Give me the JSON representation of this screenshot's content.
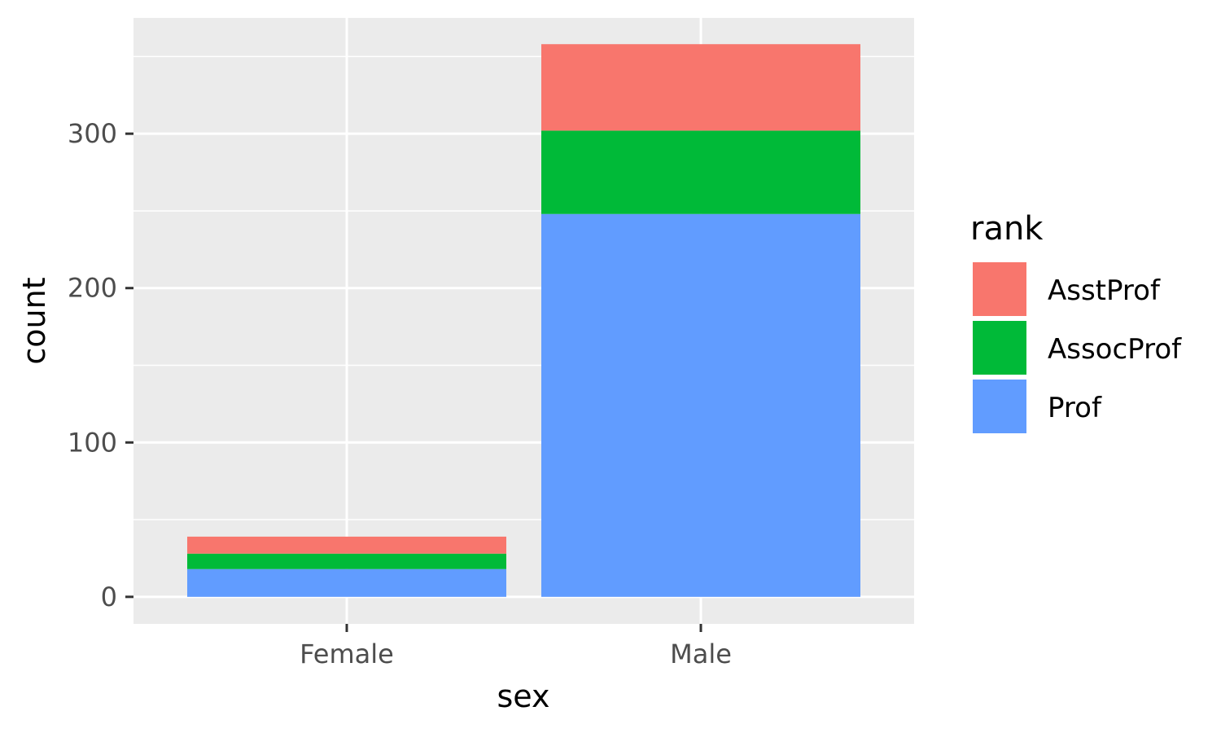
{
  "chart_data": {
    "type": "bar",
    "stacked": true,
    "categories": [
      "Female",
      "Male"
    ],
    "series": [
      {
        "name": "AsstProf",
        "values": [
          11,
          56
        ],
        "color": "#F8766D"
      },
      {
        "name": "AssocProf",
        "values": [
          10,
          54
        ],
        "color": "#00BA38"
      },
      {
        "name": "Prof",
        "values": [
          18,
          248
        ],
        "color": "#619CFF"
      }
    ],
    "stack_order_bottom_to_top": [
      "Prof",
      "AssocProf",
      "AsstProf"
    ],
    "xlabel": "sex",
    "ylabel": "count",
    "yticks": [
      0,
      100,
      200,
      300
    ],
    "ylim": [
      -17.5,
      375
    ],
    "legend": {
      "title": "rank",
      "position": "right"
    },
    "grid": true,
    "panel_background": "#EBEBEB"
  }
}
